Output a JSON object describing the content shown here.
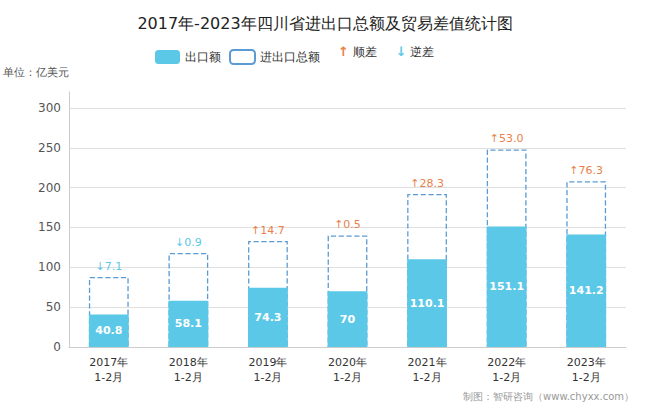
{
  "chart_data": {
    "type": "bar",
    "title": "2017年-2023年四川省进出口总额及贸易差值统计图",
    "y_label": "单位：亿美元",
    "footer": "制图：智研咨询（www.chyxx.com）",
    "categories": [
      "2017年\n1-2月",
      "2018年\n1-2月",
      "2019年\n1-2月",
      "2020年\n1-2月",
      "2021年\n1-2月",
      "2022年\n1-2月",
      "2023年\n1-2月"
    ],
    "series": [
      {
        "name": "出口额",
        "color": "#5BC8E8",
        "values": [
          40.8,
          58.1,
          74.3,
          70.0,
          110.1,
          151.1,
          141.2
        ],
        "data_labels": true
      },
      {
        "name": "进出口总额",
        "color": "#5B9BD5",
        "line_style": "dashed",
        "values": [
          88.0,
          118.0,
          133.0,
          140.0,
          192.0,
          248.0,
          208.0
        ]
      }
    ],
    "differences": {
      "values": [
        -7.1,
        -0.9,
        14.7,
        0.5,
        28.3,
        53.0,
        76.3
      ],
      "value_labels": [
        "↓7.1",
        "↓0.9",
        "↑14.7",
        "↑0.5",
        "↑28.3",
        "↑53.0",
        "↑76.3"
      ],
      "up": {
        "name": "顺差",
        "color": "#E8824A",
        "marker": "↑"
      },
      "down": {
        "name": "逆差",
        "color": "#5BC8E8",
        "marker": "↓"
      }
    },
    "ylim": [
      0,
      320
    ],
    "yticks": [
      0,
      50,
      100,
      150,
      200,
      250,
      300
    ],
    "grid": true
  }
}
